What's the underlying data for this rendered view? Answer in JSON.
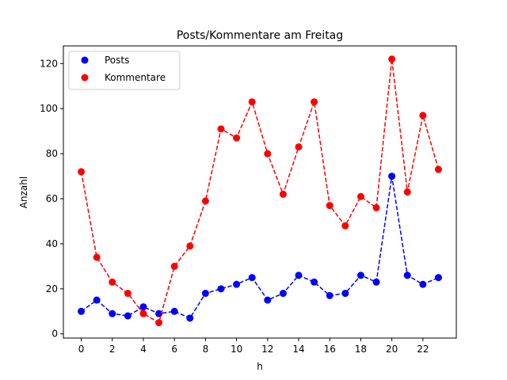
{
  "chart_data": {
    "type": "line",
    "title": "Posts/Kommentare am Freitag",
    "xlabel": "h",
    "ylabel": "Anzahl",
    "x": [
      0,
      1,
      2,
      3,
      4,
      5,
      6,
      7,
      8,
      9,
      10,
      11,
      12,
      13,
      14,
      15,
      16,
      17,
      18,
      19,
      20,
      21,
      22,
      23
    ],
    "xticks": [
      0,
      2,
      4,
      6,
      8,
      10,
      12,
      14,
      16,
      18,
      20,
      22
    ],
    "yticks": [
      0,
      20,
      40,
      60,
      80,
      100,
      120
    ],
    "xlim": [
      -1.15,
      24.15
    ],
    "ylim": [
      -1.85,
      127.85
    ],
    "grid": false,
    "legend_position": "upper-left",
    "series": [
      {
        "name": "Posts",
        "color": "#0000ff",
        "values": [
          10,
          15,
          9,
          8,
          12,
          9,
          10,
          7,
          18,
          20,
          22,
          25,
          15,
          18,
          26,
          23,
          17,
          18,
          26,
          23,
          70,
          26,
          22,
          25
        ]
      },
      {
        "name": "Kommentare",
        "color": "#ff0000",
        "values": [
          72,
          34,
          23,
          18,
          9,
          5,
          30,
          39,
          59,
          91,
          87,
          103,
          80,
          62,
          83,
          103,
          57,
          48,
          61,
          56,
          122,
          63,
          97,
          73
        ]
      }
    ]
  }
}
